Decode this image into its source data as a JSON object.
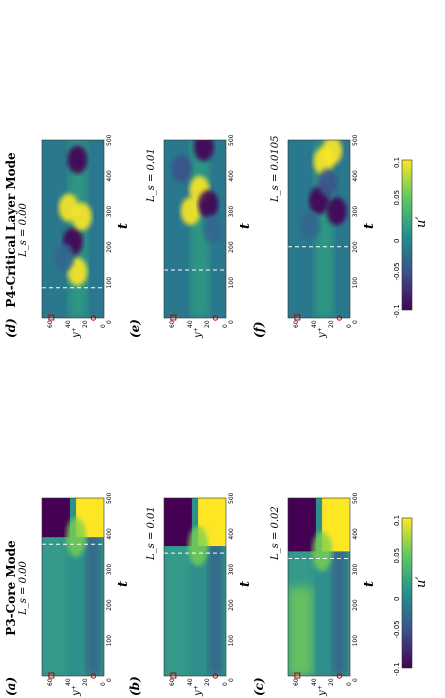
{
  "columns": [
    {
      "title": "P3-Core Mode",
      "subtitle": "L_s = 0.00"
    },
    {
      "title": "P4-Critical Layer Mode",
      "subtitle": "L_s = 0.00"
    }
  ],
  "panels": [
    {
      "label": "(a)",
      "ls_label": ""
    },
    {
      "label": "(b)",
      "ls_label": "L_s = 0.01"
    },
    {
      "label": "(c)",
      "ls_label": "L_s = 0.02"
    },
    {
      "label": "(d)",
      "ls_label": ""
    },
    {
      "label": "(e)",
      "ls_label": "L_s = 0.01"
    },
    {
      "label": "(f)",
      "ls_label": "L_s = 0.0105"
    }
  ],
  "axes": {
    "xlabel": "t",
    "ylabel": "y⁺",
    "xticks": [
      "0",
      "100",
      "200",
      "300",
      "400",
      "500"
    ],
    "yticks": [
      "0",
      "20",
      "40",
      "60"
    ]
  },
  "colorbar": {
    "label": "u′",
    "ticks": [
      "-0.1",
      "-0.05",
      "0",
      "0.05",
      "0.1"
    ]
  },
  "chart_data": [
    {
      "type": "heatmap",
      "panel": "a",
      "xlim": [
        0,
        500
      ],
      "ylim": [
        0,
        70
      ],
      "dashed_t": 370
    },
    {
      "type": "heatmap",
      "panel": "b",
      "xlim": [
        0,
        500
      ],
      "ylim": [
        0,
        70
      ],
      "dashed_t": 345
    },
    {
      "type": "heatmap",
      "panel": "c",
      "xlim": [
        0,
        500
      ],
      "ylim": [
        0,
        70
      ],
      "dashed_t": 330
    },
    {
      "type": "heatmap",
      "panel": "d",
      "xlim": [
        0,
        500
      ],
      "ylim": [
        0,
        70
      ],
      "dashed_t": 85
    },
    {
      "type": "heatmap",
      "panel": "e",
      "xlim": [
        0,
        500
      ],
      "ylim": [
        0,
        70
      ],
      "dashed_t": 135
    },
    {
      "type": "heatmap",
      "panel": "f",
      "xlim": [
        0,
        500
      ],
      "ylim": [
        0,
        70
      ],
      "dashed_t": 200
    }
  ],
  "colors": {
    "low": "#440154",
    "mid": "#21918c",
    "high": "#fde725"
  }
}
